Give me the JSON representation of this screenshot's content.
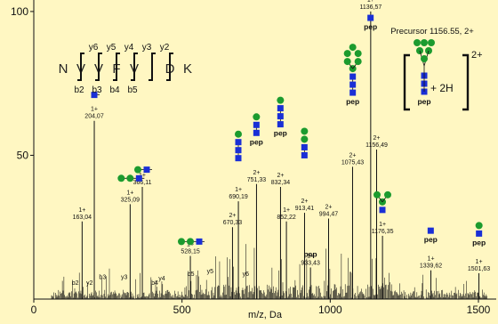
{
  "chart_data": {
    "type": "bar",
    "xlabel": "m/z, Da",
    "ylabel": "",
    "xlim": [
      0,
      1560
    ],
    "ylim": [
      0,
      104
    ],
    "x_ticks": [
      "0",
      "500",
      "1000",
      "1500"
    ],
    "y_ticks": [
      "100",
      "50"
    ],
    "precursor_label": "Precursor 1156.55, 2+",
    "precursor_charge": "2+",
    "precursor_adduct": "+ 2H",
    "peptide_sequence": [
      "N",
      "V",
      "V",
      "F",
      "V",
      "I",
      "D",
      "K"
    ],
    "y_ions": [
      "y6",
      "y5",
      "y4",
      "y3",
      "y2"
    ],
    "b_ions": [
      "b2",
      "b3",
      "b4",
      "b5"
    ],
    "peaks": [
      {
        "mz": 163.04,
        "intensity": 27,
        "charge": "1+",
        "value": "163,04"
      },
      {
        "mz": 204.07,
        "intensity": 62,
        "charge": "1+",
        "value": "204,07"
      },
      {
        "mz": 325.09,
        "intensity": 33,
        "charge": "1+",
        "value": "325,09"
      },
      {
        "mz": 366.11,
        "intensity": 39,
        "charge": "1+",
        "value": "366,11"
      },
      {
        "mz": 528.15,
        "intensity": 15,
        "charge": "1+",
        "value": "528,15"
      },
      {
        "mz": 670.33,
        "intensity": 25,
        "charge": "2+",
        "value": "670,33"
      },
      {
        "mz": 690.19,
        "intensity": 34,
        "charge": "1+",
        "value": "690,19"
      },
      {
        "mz": 751.33,
        "intensity": 40,
        "charge": "2+",
        "value": "751,33"
      },
      {
        "mz": 832.34,
        "intensity": 39,
        "charge": "2+",
        "value": "832,34"
      },
      {
        "mz": 852.22,
        "intensity": 27,
        "charge": "1+",
        "value": "852,22"
      },
      {
        "mz": 913.41,
        "intensity": 30,
        "charge": "2+",
        "value": "913,41"
      },
      {
        "mz": 933.43,
        "intensity": 11,
        "charge": "1+",
        "value": "933,43"
      },
      {
        "mz": 994.47,
        "intensity": 28,
        "charge": "2+",
        "value": "994,47"
      },
      {
        "mz": 1075.43,
        "intensity": 46,
        "charge": "2+",
        "value": "1075,43"
      },
      {
        "mz": 1136.57,
        "intensity": 100,
        "charge": "1+",
        "value": "1136,57"
      },
      {
        "mz": 1156.49,
        "intensity": 52,
        "charge": "2+",
        "value": "1156,49"
      },
      {
        "mz": 1176.35,
        "intensity": 22,
        "charge": "1+",
        "value": "1176,35"
      },
      {
        "mz": 1339.62,
        "intensity": 10,
        "charge": "1+",
        "value": "1339,62"
      },
      {
        "mz": 1501.63,
        "intensity": 9,
        "charge": "1+",
        "value": "1501,63"
      }
    ],
    "ion_labels": [
      {
        "mz": 140,
        "intensity": 5,
        "text": "b2"
      },
      {
        "mz": 188,
        "intensity": 5,
        "text": "y2"
      },
      {
        "mz": 232,
        "intensity": 7,
        "text": "b3"
      },
      {
        "mz": 305,
        "intensity": 7,
        "text": "y3"
      },
      {
        "mz": 408,
        "intensity": 5,
        "text": "b4"
      },
      {
        "mz": 432,
        "intensity": 6.5,
        "text": "y4"
      },
      {
        "mz": 530,
        "intensity": 8,
        "text": "b5"
      },
      {
        "mz": 595,
        "intensity": 9,
        "text": "y5"
      },
      {
        "mz": 715,
        "intensity": 8,
        "text": "y6"
      }
    ],
    "glycan_icons": [
      {
        "x": 1136,
        "y": 95,
        "hexnac": 1,
        "hex": 0,
        "pep": true
      },
      {
        "x": 204,
        "y": 71,
        "hexnac": 1,
        "hex": 0,
        "pep": false,
        "inline": true
      },
      {
        "x": 325,
        "y": 42,
        "hexnac": 1,
        "hex": 2,
        "pep": false,
        "inline": true
      },
      {
        "x": 366,
        "y": 45,
        "hexnac": 1,
        "hex": 1,
        "pep": false,
        "inline": true
      },
      {
        "x": 528,
        "y": 20,
        "hexnac": 1,
        "hex": 2,
        "pep": false,
        "inline": true
      },
      {
        "x": 690,
        "y": 49,
        "hexnac": 3,
        "hex": 1,
        "pep": false
      },
      {
        "x": 751,
        "y": 55,
        "hexnac": 2,
        "hex": 1,
        "pep": true
      },
      {
        "x": 832,
        "y": 58,
        "hexnac": 3,
        "hex": 1,
        "pep": true
      },
      {
        "x": 913,
        "y": 50,
        "hexnac": 2,
        "hex": 2,
        "pep": false
      },
      {
        "x": 933,
        "y": 16,
        "hexnac": 0,
        "hex": 0,
        "pep": true
      },
      {
        "x": 1076,
        "y": 69,
        "hexnac": 3,
        "hex": 3,
        "pep": true
      },
      {
        "x": 1176,
        "y": 31,
        "hexnac": 1,
        "hex": 3,
        "pep": false
      },
      {
        "x": 1339,
        "y": 21,
        "hexnac": 1,
        "hex": 0,
        "pep": true
      },
      {
        "x": 1502,
        "y": 20,
        "hexnac": 1,
        "hex": 1,
        "pep": true
      }
    ],
    "colors": {
      "background": "#FFF7C2",
      "hexnac": "#1a2fd6",
      "hex": "#1c9b2e",
      "trace": "#111111"
    }
  }
}
